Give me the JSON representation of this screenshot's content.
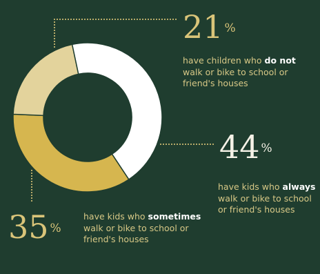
{
  "chart_data": {
    "type": "pie",
    "slices": [
      {
        "value": 44,
        "color": "#ffffff"
      },
      {
        "value": 35,
        "color": "#d6b64f"
      },
      {
        "value": 21,
        "color": "#e3d39c"
      }
    ]
  },
  "stats": {
    "never": {
      "number": "21",
      "percent_sign": "%",
      "text_before": "have children who ",
      "bold": "do not",
      "text_after": " walk or bike to school or friend's houses"
    },
    "always": {
      "number": "44",
      "percent_sign": "%",
      "text_before": "have kids who ",
      "bold": "always",
      "text_after": " walk or bike to school or friend's houses"
    },
    "sometimes": {
      "number": "35",
      "percent_sign": "%",
      "text_before": "have kids who ",
      "bold": "sometimes",
      "text_after": " walk or bike to school or friend's houses"
    }
  }
}
